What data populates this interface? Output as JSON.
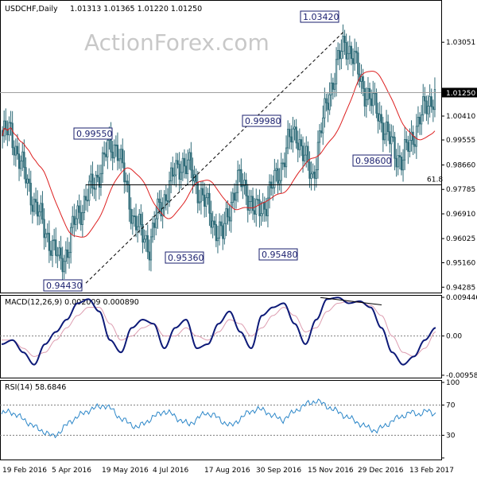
{
  "header": {
    "symbol": "USDCHF,Daily",
    "ohlc": "1.01313 1.01365 1.01220 1.01250",
    "watermark": "ActionForex.com"
  },
  "macd_header": "MACD(12,26,9) 0.002009 0.000890",
  "rsi_header": "RSI(14) 58.6846",
  "colors": {
    "candle": "#2e6b78",
    "ma": "#dd2020",
    "macd": "#0d1a78",
    "signal": "#dd9db0",
    "rsi": "#2b86c8",
    "box_border": "#1a1f6e",
    "grid": "#808080"
  },
  "chart_data": [
    {
      "type": "candlestick",
      "title": "USDCHF,Daily",
      "ylim": [
        0.9415,
        1.0445
      ],
      "y_ticks": [
        "1.03051",
        "1.01210",
        "1.00410",
        "0.99555",
        "0.98660",
        "0.97785",
        "0.96910",
        "0.96025",
        "0.95160",
        "0.94285"
      ],
      "current_price": "1.01250",
      "level_line": {
        "label": "61.8",
        "value": 0.9795
      },
      "price_labels": [
        {
          "text": "1.03420",
          "value": 1.0342
        },
        {
          "text": "0.99550",
          "value": 0.9955
        },
        {
          "text": "0.99980",
          "value": 0.9998
        },
        {
          "text": "0.98600",
          "value": 0.986
        },
        {
          "text": "0.95360",
          "value": 0.9536
        },
        {
          "text": "0.95480",
          "value": 0.9548
        },
        {
          "text": "0.94430",
          "value": 0.9443
        }
      ],
      "x_labels": [
        "19 Feb 2016",
        "5 Apr 2016",
        "19 May 2016",
        "4 Jul 2016",
        "17 Aug 2016",
        "30 Sep 2016",
        "15 Nov 2016",
        "29 Dec 2016",
        "13 Feb 2017"
      ],
      "series": [
        {
          "dates": [
            "2016-02-19",
            "2016-02-26",
            "2016-03-04",
            "2016-03-11",
            "2016-03-18",
            "2016-03-25",
            "2016-04-01",
            "2016-04-08",
            "2016-04-15",
            "2016-04-22",
            "2016-04-29",
            "2016-05-06",
            "2016-05-13",
            "2016-05-20",
            "2016-05-27",
            "2016-06-03",
            "2016-06-10",
            "2016-06-17",
            "2016-06-24",
            "2016-07-01",
            "2016-07-08",
            "2016-07-15",
            "2016-07-22",
            "2016-07-29",
            "2016-08-05",
            "2016-08-12",
            "2016-08-19",
            "2016-08-26",
            "2016-09-02",
            "2016-09-09",
            "2016-09-16",
            "2016-09-23",
            "2016-09-30",
            "2016-10-07",
            "2016-10-14",
            "2016-10-21",
            "2016-10-28",
            "2016-11-04",
            "2016-11-11",
            "2016-11-18",
            "2016-11-25",
            "2016-12-02",
            "2016-12-09",
            "2016-12-16",
            "2016-12-23",
            "2016-12-30",
            "2017-01-06",
            "2017-01-13",
            "2017-01-20",
            "2017-01-27",
            "2017-02-03",
            "2017-02-10",
            "2017-02-17",
            "2017-02-24"
          ],
          "close": [
            0.997,
            0.999,
            0.989,
            0.981,
            0.972,
            0.965,
            0.958,
            0.952,
            0.956,
            0.968,
            0.973,
            0.979,
            0.985,
            0.993,
            0.994,
            0.981,
            0.968,
            0.962,
            0.958,
            0.969,
            0.976,
            0.983,
            0.988,
            0.985,
            0.978,
            0.972,
            0.965,
            0.961,
            0.974,
            0.981,
            0.977,
            0.969,
            0.972,
            0.978,
            0.985,
            0.994,
            0.999,
            0.989,
            0.982,
            0.998,
            1.012,
            1.022,
            1.031,
            1.025,
            1.016,
            1.01,
            1.006,
            0.998,
            0.992,
            0.988,
            0.995,
            1.002,
            1.008,
            1.0125
          ]
        }
      ]
    },
    {
      "type": "line",
      "title": "MACD(12,26,9) 0.002009 0.000890",
      "ylim": [
        -0.009588,
        0.009446
      ],
      "y_ticks": [
        "0.009446",
        "0.00",
        "-0.009588"
      ],
      "series": [
        {
          "name": "MACD",
          "values": [
            -0.002,
            -0.001,
            -0.004,
            -0.007,
            -0.002,
            0.001,
            0.004,
            0.008,
            0.009,
            0.006,
            -0.001,
            -0.004,
            0.002,
            0.004,
            0.003,
            -0.003,
            0.002,
            0.004,
            -0.003,
            -0.002,
            0.003,
            0.006,
            0.001,
            -0.003,
            0.005,
            0.007,
            0.008,
            0.003,
            -0.002,
            0.004,
            0.009,
            0.0094,
            0.008,
            0.0085,
            0.007,
            0.002,
            -0.004,
            -0.007,
            -0.005,
            -0.001,
            0.002
          ]
        },
        {
          "name": "Signal",
          "values": [
            -0.001,
            -0.001,
            -0.003,
            -0.005,
            -0.004,
            -0.001,
            0.002,
            0.005,
            0.007,
            0.007,
            0.003,
            -0.001,
            0.0,
            0.002,
            0.003,
            0.0,
            0.0,
            0.002,
            0.0,
            -0.001,
            0.001,
            0.004,
            0.003,
            0.0,
            0.002,
            0.005,
            0.007,
            0.005,
            0.001,
            0.002,
            0.006,
            0.008,
            0.0085,
            0.0082,
            0.0075,
            0.005,
            0.0,
            -0.004,
            -0.005,
            -0.003,
            0.001
          ]
        }
      ]
    },
    {
      "type": "line",
      "title": "RSI(14) 58.6846",
      "ylim": [
        0,
        100
      ],
      "y_ticks": [
        "100",
        "70",
        "30",
        "0"
      ],
      "series": [
        {
          "name": "RSI",
          "values": [
            58,
            62,
            55,
            48,
            40,
            35,
            28,
            36,
            48,
            55,
            62,
            66,
            70,
            64,
            52,
            46,
            40,
            48,
            55,
            62,
            58,
            50,
            44,
            52,
            60,
            56,
            48,
            42,
            52,
            60,
            65,
            62,
            55,
            50,
            58,
            66,
            72,
            76,
            70,
            64,
            58,
            52,
            46,
            40,
            36,
            42,
            50,
            55,
            60,
            58,
            62,
            58.7
          ]
        }
      ]
    }
  ]
}
